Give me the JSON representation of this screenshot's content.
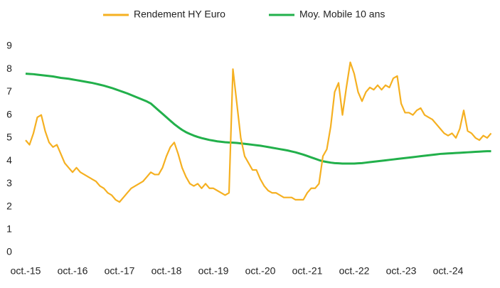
{
  "chart_data": {
    "type": "line",
    "categories": [
      "oct.-15",
      null,
      null,
      null,
      null,
      null,
      null,
      null,
      null,
      null,
      null,
      null,
      "oct.-16",
      null,
      null,
      null,
      null,
      null,
      null,
      null,
      null,
      null,
      null,
      null,
      "oct.-17",
      null,
      null,
      null,
      null,
      null,
      null,
      null,
      null,
      null,
      null,
      null,
      "oct.-18",
      null,
      null,
      null,
      null,
      null,
      null,
      null,
      null,
      null,
      null,
      null,
      "oct.-19",
      null,
      null,
      null,
      null,
      null,
      null,
      null,
      null,
      null,
      null,
      null,
      "oct.-20",
      null,
      null,
      null,
      null,
      null,
      null,
      null,
      null,
      null,
      null,
      null,
      "oct.-21",
      null,
      null,
      null,
      null,
      null,
      null,
      null,
      null,
      null,
      null,
      null,
      "oct.-22",
      null,
      null,
      null,
      null,
      null,
      null,
      null,
      null,
      null,
      null,
      null,
      "oct.-23",
      null,
      null,
      null,
      null,
      null,
      null,
      null,
      null,
      null,
      null,
      null,
      "oct.-24",
      null,
      null,
      null,
      null,
      null,
      null,
      null,
      null,
      null,
      null,
      null
    ],
    "series": [
      {
        "name": "Rendement HY Euro",
        "color": "#f5b021",
        "values": [
          4.9,
          4.7,
          5.2,
          5.9,
          6.0,
          5.3,
          4.8,
          4.6,
          4.7,
          4.3,
          3.9,
          3.7,
          3.5,
          3.7,
          3.5,
          3.4,
          3.3,
          3.2,
          3.1,
          2.9,
          2.8,
          2.6,
          2.5,
          2.3,
          2.2,
          2.4,
          2.6,
          2.8,
          2.9,
          3.0,
          3.1,
          3.3,
          3.5,
          3.4,
          3.4,
          3.7,
          4.2,
          4.6,
          4.8,
          4.3,
          3.7,
          3.3,
          3.0,
          2.9,
          3.0,
          2.8,
          3.0,
          2.8,
          2.8,
          2.7,
          2.6,
          2.5,
          2.6,
          8.0,
          6.5,
          5.0,
          4.2,
          3.9,
          3.6,
          3.6,
          3.2,
          2.9,
          2.7,
          2.6,
          2.6,
          2.5,
          2.4,
          2.4,
          2.4,
          2.3,
          2.3,
          2.3,
          2.6,
          2.8,
          2.8,
          3.0,
          4.2,
          4.5,
          5.5,
          7.0,
          7.4,
          6.0,
          7.2,
          8.3,
          7.8,
          7.0,
          6.6,
          7.0,
          7.2,
          7.1,
          7.3,
          7.1,
          7.3,
          7.2,
          7.6,
          7.7,
          6.5,
          6.1,
          6.1,
          6.0,
          6.2,
          6.3,
          6.0,
          5.9,
          5.8,
          5.6,
          5.4,
          5.2,
          5.1,
          5.2,
          5.0,
          5.4,
          6.2,
          5.3,
          5.2,
          5.0,
          4.9,
          5.1,
          5.0,
          5.2
        ]
      },
      {
        "name": "Moy. Mobile 10 ans",
        "color": "#22b04b",
        "values": [
          7.8,
          7.79,
          7.78,
          7.76,
          7.74,
          7.72,
          7.7,
          7.68,
          7.65,
          7.62,
          7.6,
          7.58,
          7.55,
          7.52,
          7.49,
          7.46,
          7.43,
          7.4,
          7.36,
          7.32,
          7.28,
          7.23,
          7.18,
          7.12,
          7.06,
          7.0,
          6.94,
          6.87,
          6.8,
          6.73,
          6.66,
          6.59,
          6.5,
          6.35,
          6.2,
          6.05,
          5.9,
          5.75,
          5.6,
          5.47,
          5.35,
          5.25,
          5.17,
          5.1,
          5.04,
          4.99,
          4.95,
          4.91,
          4.88,
          4.85,
          4.83,
          4.81,
          4.8,
          4.79,
          4.78,
          4.76,
          4.74,
          4.72,
          4.7,
          4.68,
          4.66,
          4.63,
          4.6,
          4.57,
          4.54,
          4.51,
          4.48,
          4.45,
          4.41,
          4.37,
          4.32,
          4.27,
          4.21,
          4.15,
          4.09,
          4.03,
          3.98,
          3.95,
          3.92,
          3.9,
          3.89,
          3.88,
          3.88,
          3.88,
          3.88,
          3.89,
          3.9,
          3.92,
          3.94,
          3.96,
          3.98,
          4.0,
          4.02,
          4.04,
          4.06,
          4.08,
          4.1,
          4.12,
          4.14,
          4.16,
          4.18,
          4.2,
          4.22,
          4.24,
          4.26,
          4.28,
          4.3,
          4.31,
          4.32,
          4.33,
          4.34,
          4.35,
          4.36,
          4.37,
          4.38,
          4.39,
          4.4,
          4.41,
          4.42,
          4.42
        ]
      }
    ],
    "ylim": [
      0,
      9
    ],
    "yticks": [
      0,
      1,
      2,
      3,
      4,
      5,
      6,
      7,
      8,
      9
    ],
    "grid": false,
    "legend": "top"
  }
}
